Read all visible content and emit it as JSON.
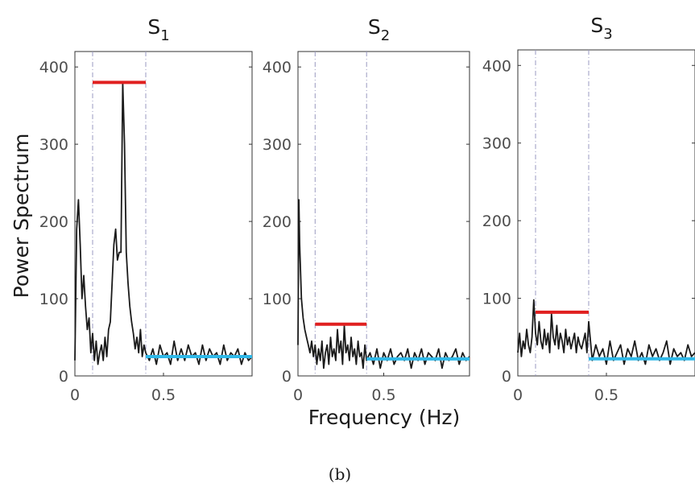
{
  "figure": {
    "ylabel": "Power Spectrum",
    "xlabel": "Frequency (Hz)",
    "caption": "(b)"
  },
  "colors": {
    "spectrum": "#1a1a1a",
    "lf_band": "#e02020",
    "hf_band": "#2fb8e8",
    "band_divider": "#9a9ac0",
    "axes": "#333333"
  },
  "chart_data": [
    {
      "type": "line",
      "title": "S",
      "title_subscript": "1",
      "xlim": [
        0,
        1.0
      ],
      "ylim": [
        0,
        420
      ],
      "xticks": [
        0,
        0.5
      ],
      "xticklabels": [
        "0",
        "0.5"
      ],
      "yticks": [
        0,
        100,
        200,
        300,
        400
      ],
      "yticklabels": [
        "0",
        "100",
        "200",
        "300",
        "400"
      ],
      "band_dividers": [
        0.1,
        0.4
      ],
      "lf_band": {
        "x": [
          0.1,
          0.4
        ],
        "y": 380
      },
      "hf_band": {
        "x": [
          0.4,
          1.0
        ],
        "y": 25
      },
      "spectrum": {
        "x": [
          0.0,
          0.01,
          0.02,
          0.03,
          0.04,
          0.05,
          0.06,
          0.07,
          0.08,
          0.09,
          0.1,
          0.11,
          0.12,
          0.13,
          0.14,
          0.15,
          0.16,
          0.17,
          0.18,
          0.19,
          0.2,
          0.21,
          0.22,
          0.23,
          0.24,
          0.25,
          0.26,
          0.27,
          0.28,
          0.29,
          0.3,
          0.31,
          0.32,
          0.33,
          0.34,
          0.35,
          0.36,
          0.37,
          0.38,
          0.39,
          0.4,
          0.42,
          0.44,
          0.46,
          0.48,
          0.5,
          0.52,
          0.54,
          0.56,
          0.58,
          0.6,
          0.62,
          0.64,
          0.66,
          0.68,
          0.7,
          0.72,
          0.74,
          0.76,
          0.78,
          0.8,
          0.82,
          0.84,
          0.86,
          0.88,
          0.9,
          0.92,
          0.94,
          0.96,
          0.98,
          1.0
        ],
        "y": [
          20,
          190,
          228,
          170,
          100,
          130,
          90,
          60,
          75,
          30,
          55,
          20,
          45,
          15,
          30,
          40,
          20,
          50,
          25,
          60,
          70,
          120,
          170,
          190,
          150,
          160,
          160,
          380,
          300,
          160,
          120,
          90,
          70,
          55,
          35,
          50,
          30,
          60,
          25,
          40,
          30,
          20,
          35,
          15,
          40,
          25,
          30,
          15,
          45,
          20,
          35,
          20,
          40,
          25,
          30,
          15,
          40,
          20,
          35,
          25,
          30,
          15,
          40,
          20,
          30,
          25,
          35,
          15,
          30,
          20,
          25
        ]
      }
    },
    {
      "type": "line",
      "title": "S",
      "title_subscript": "2",
      "xlim": [
        0,
        1.0
      ],
      "ylim": [
        0,
        420
      ],
      "xticks": [
        0,
        0.5
      ],
      "xticklabels": [
        "0",
        "0.5"
      ],
      "yticks": [
        0,
        100,
        200,
        300,
        400
      ],
      "yticklabels": [
        "0",
        "100",
        "200",
        "300",
        "400"
      ],
      "band_dividers": [
        0.1,
        0.4
      ],
      "lf_band": {
        "x": [
          0.1,
          0.4
        ],
        "y": 67
      },
      "hf_band": {
        "x": [
          0.4,
          1.0
        ],
        "y": 22
      },
      "spectrum": {
        "x": [
          0.0,
          0.005,
          0.01,
          0.02,
          0.03,
          0.04,
          0.05,
          0.06,
          0.07,
          0.08,
          0.09,
          0.1,
          0.11,
          0.12,
          0.13,
          0.14,
          0.15,
          0.16,
          0.17,
          0.18,
          0.19,
          0.2,
          0.21,
          0.22,
          0.23,
          0.24,
          0.25,
          0.26,
          0.27,
          0.28,
          0.29,
          0.3,
          0.31,
          0.32,
          0.33,
          0.34,
          0.35,
          0.36,
          0.37,
          0.38,
          0.39,
          0.4,
          0.42,
          0.44,
          0.46,
          0.48,
          0.5,
          0.52,
          0.54,
          0.56,
          0.58,
          0.6,
          0.62,
          0.64,
          0.66,
          0.68,
          0.7,
          0.72,
          0.74,
          0.76,
          0.78,
          0.8,
          0.82,
          0.84,
          0.86,
          0.88,
          0.9,
          0.92,
          0.94,
          0.96,
          0.98,
          1.0
        ],
        "y": [
          40,
          228,
          170,
          100,
          75,
          60,
          50,
          40,
          30,
          45,
          25,
          40,
          15,
          35,
          20,
          45,
          10,
          30,
          40,
          15,
          50,
          25,
          35,
          20,
          60,
          30,
          45,
          15,
          65,
          30,
          40,
          20,
          50,
          25,
          35,
          15,
          45,
          25,
          30,
          10,
          40,
          20,
          30,
          15,
          35,
          10,
          30,
          20,
          35,
          15,
          25,
          30,
          20,
          35,
          10,
          30,
          20,
          35,
          15,
          30,
          25,
          20,
          35,
          10,
          30,
          20,
          25,
          35,
          15,
          30,
          20,
          25
        ]
      }
    },
    {
      "type": "line",
      "title": "S",
      "title_subscript": "3",
      "xlim": [
        0,
        1.0
      ],
      "ylim": [
        0,
        420
      ],
      "xticks": [
        0,
        0.5
      ],
      "xticklabels": [
        "0",
        "0.5"
      ],
      "yticks": [
        0,
        100,
        200,
        300,
        400
      ],
      "yticklabels": [
        "0",
        "100",
        "200",
        "300",
        "400"
      ],
      "band_dividers": [
        0.1,
        0.4
      ],
      "lf_band": {
        "x": [
          0.1,
          0.4
        ],
        "y": 82
      },
      "hf_band": {
        "x": [
          0.4,
          1.0
        ],
        "y": 22
      },
      "spectrum": {
        "x": [
          0.0,
          0.01,
          0.02,
          0.03,
          0.04,
          0.05,
          0.06,
          0.07,
          0.08,
          0.09,
          0.1,
          0.11,
          0.12,
          0.13,
          0.14,
          0.15,
          0.16,
          0.17,
          0.18,
          0.19,
          0.2,
          0.21,
          0.22,
          0.23,
          0.24,
          0.25,
          0.26,
          0.27,
          0.28,
          0.29,
          0.3,
          0.31,
          0.32,
          0.33,
          0.34,
          0.35,
          0.36,
          0.37,
          0.38,
          0.39,
          0.4,
          0.42,
          0.44,
          0.46,
          0.48,
          0.5,
          0.52,
          0.54,
          0.56,
          0.58,
          0.6,
          0.62,
          0.64,
          0.66,
          0.68,
          0.7,
          0.72,
          0.74,
          0.76,
          0.78,
          0.8,
          0.82,
          0.84,
          0.86,
          0.88,
          0.9,
          0.92,
          0.94,
          0.96,
          0.98,
          1.0
        ],
        "y": [
          30,
          55,
          25,
          45,
          35,
          60,
          40,
          30,
          50,
          98,
          55,
          40,
          70,
          45,
          35,
          60,
          40,
          55,
          30,
          80,
          50,
          40,
          65,
          35,
          55,
          45,
          30,
          60,
          40,
          50,
          35,
          45,
          55,
          30,
          50,
          40,
          35,
          45,
          55,
          30,
          70,
          20,
          40,
          25,
          35,
          15,
          45,
          20,
          30,
          40,
          15,
          35,
          25,
          45,
          20,
          30,
          15,
          40,
          25,
          35,
          20,
          30,
          45,
          15,
          35,
          25,
          30,
          20,
          40,
          25,
          30
        ]
      }
    }
  ]
}
